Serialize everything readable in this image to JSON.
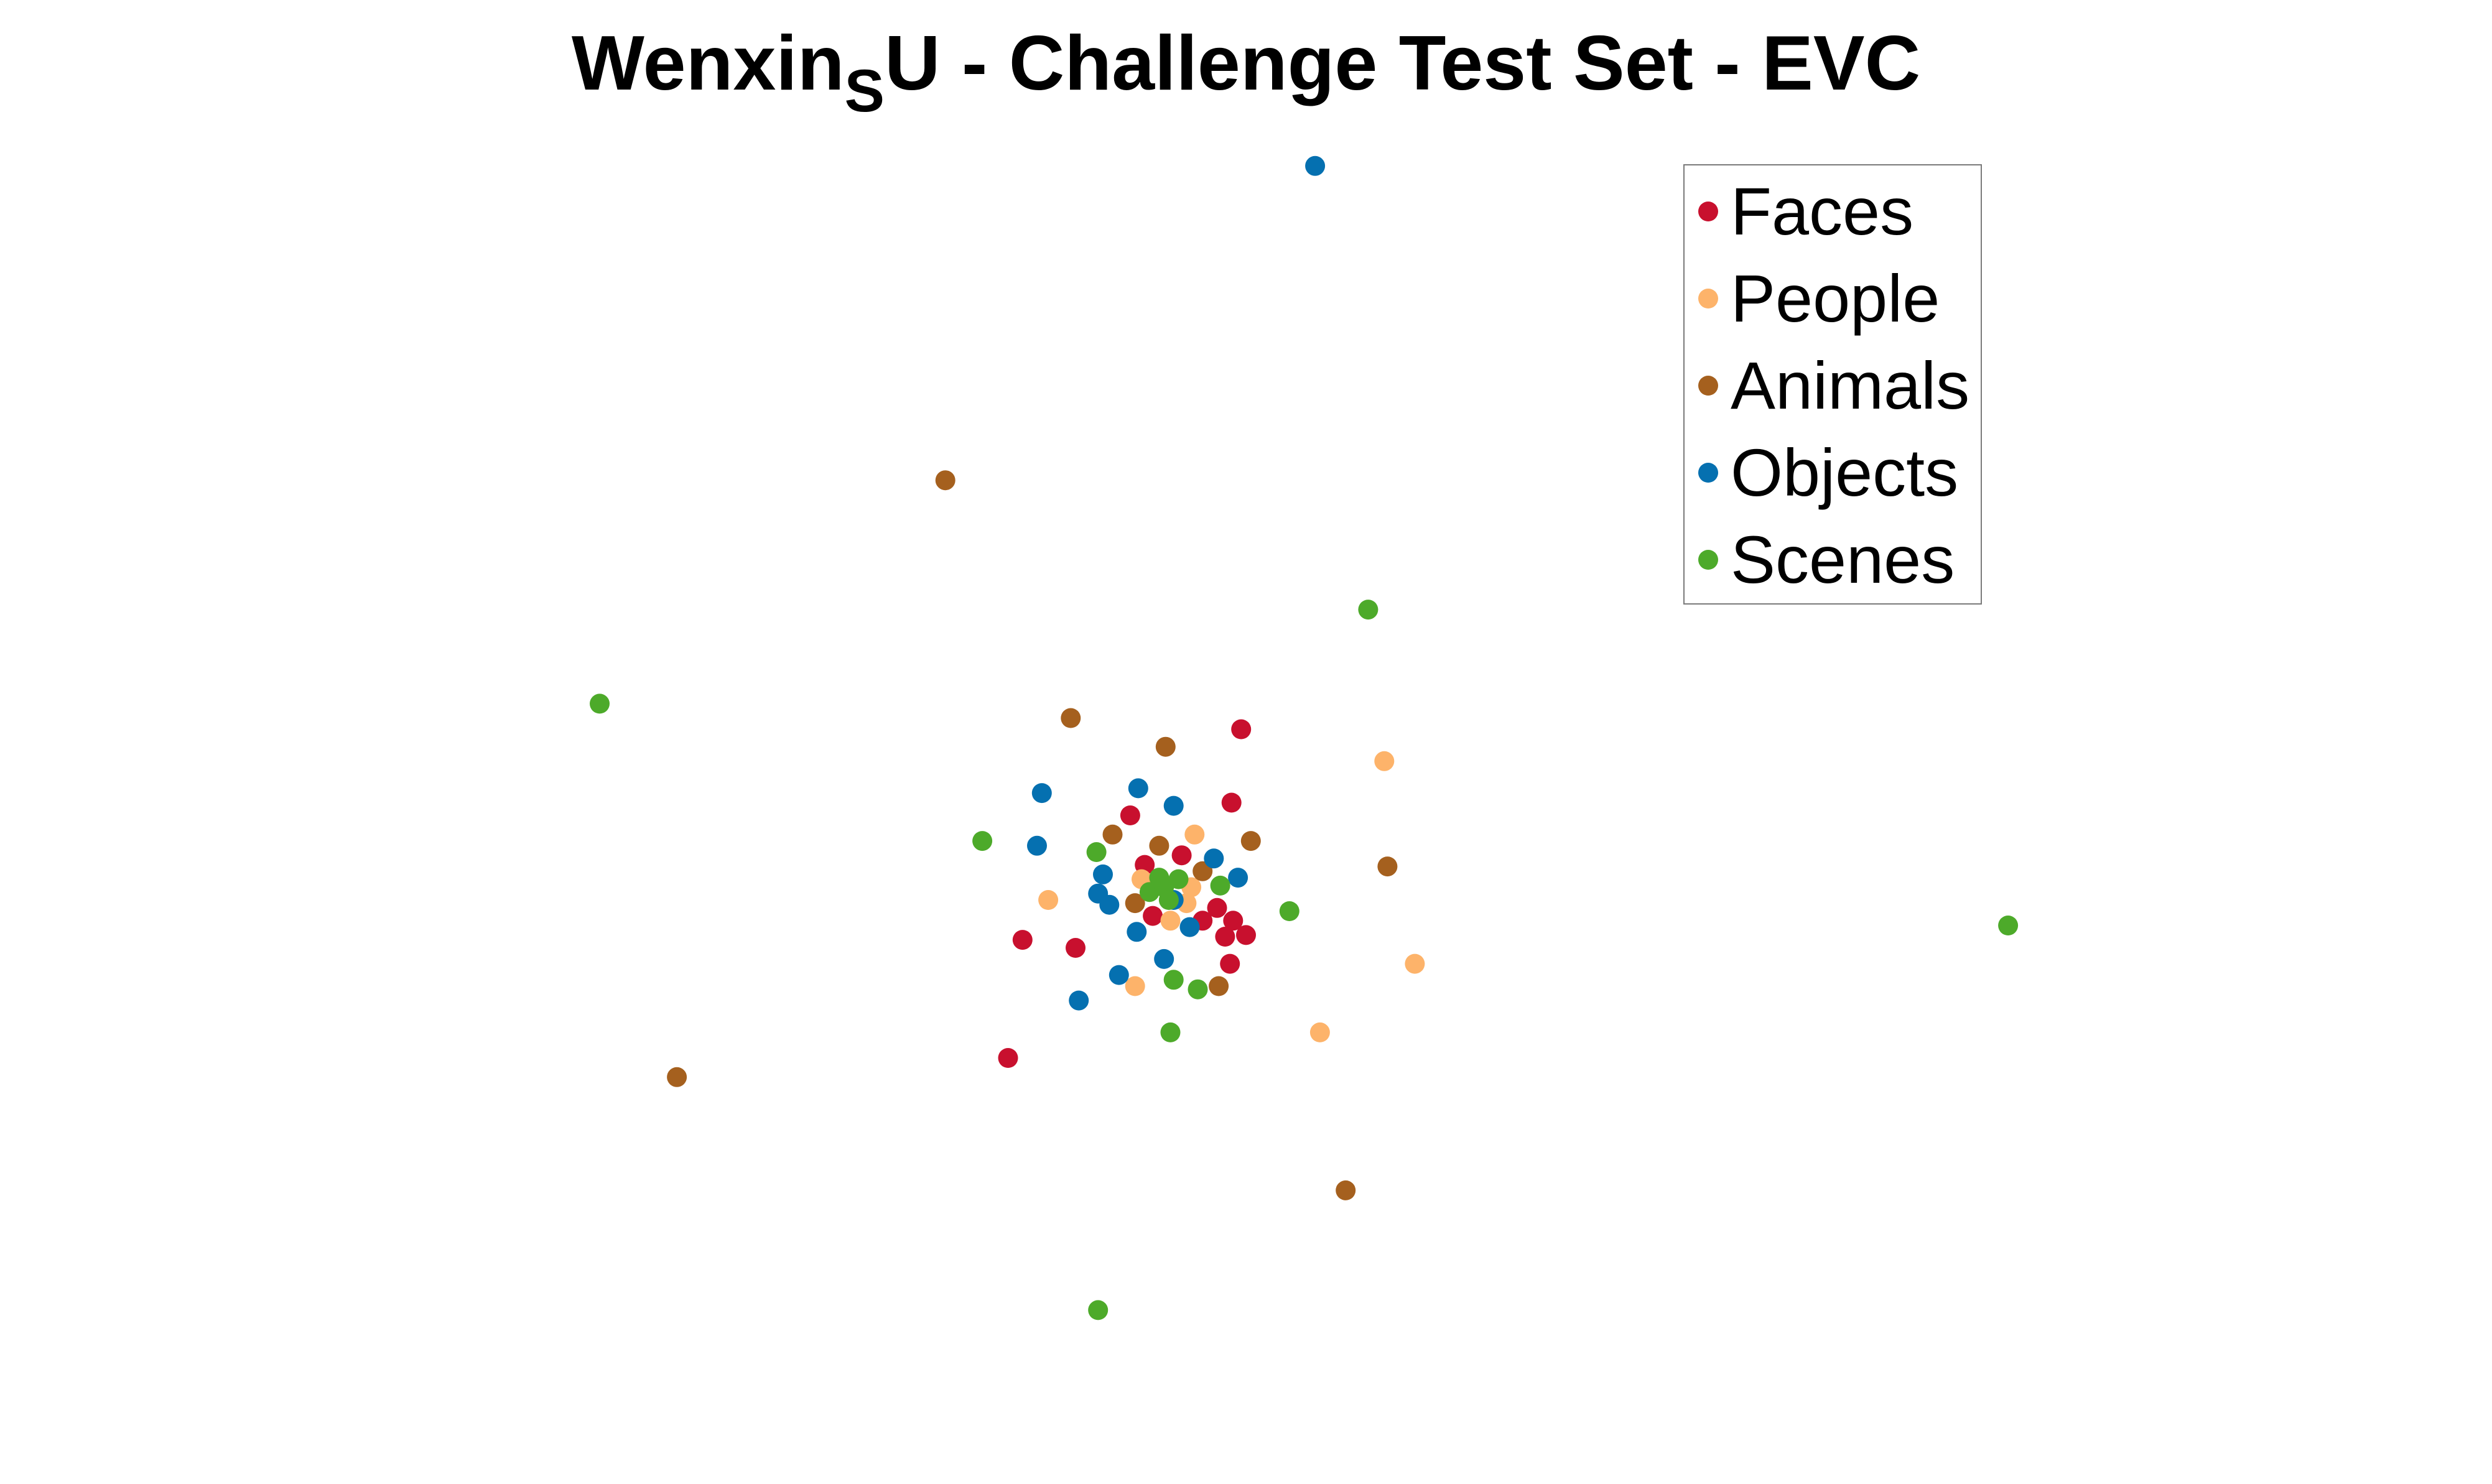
{
  "chart_data": {
    "type": "scatter",
    "title_main": "Wenxin",
    "title_sub": "S",
    "title_rest": "U - Challenge Test Set - EVC",
    "xlabel": "",
    "ylabel": "",
    "axes_visible": false,
    "grid": false,
    "xlim": [
      0,
      1550
    ],
    "ylim": [
      -930,
      0
    ],
    "legend_position": "top-right",
    "series": [
      {
        "name": "Faces",
        "color": "#C8102E",
        "points": [
          {
            "x": 772,
            "y": -457
          },
          {
            "x": 766,
            "y": -503
          },
          {
            "x": 703,
            "y": -511
          },
          {
            "x": 735,
            "y": -536
          },
          {
            "x": 712,
            "y": -542
          },
          {
            "x": 757,
            "y": -569
          },
          {
            "x": 717,
            "y": -574
          },
          {
            "x": 748,
            "y": -577
          },
          {
            "x": 767,
            "y": -577
          },
          {
            "x": 762,
            "y": -587
          },
          {
            "x": 775,
            "y": -586
          },
          {
            "x": 636,
            "y": -589
          },
          {
            "x": 669,
            "y": -594
          },
          {
            "x": 765,
            "y": -604
          },
          {
            "x": 627,
            "y": -663
          }
        ]
      },
      {
        "name": "People",
        "color": "#FDB36A",
        "points": [
          {
            "x": 861,
            "y": -477
          },
          {
            "x": 743,
            "y": -523
          },
          {
            "x": 710,
            "y": -551
          },
          {
            "x": 741,
            "y": -556
          },
          {
            "x": 738,
            "y": -566
          },
          {
            "x": 652,
            "y": -564
          },
          {
            "x": 728,
            "y": -577
          },
          {
            "x": 880,
            "y": -604
          },
          {
            "x": 706,
            "y": -618
          },
          {
            "x": 821,
            "y": -647
          }
        ]
      },
      {
        "name": "Animals",
        "color": "#A5601E",
        "points": [
          {
            "x": 588,
            "y": -301
          },
          {
            "x": 666,
            "y": -450
          },
          {
            "x": 725,
            "y": -468
          },
          {
            "x": 692,
            "y": -523
          },
          {
            "x": 721,
            "y": -530
          },
          {
            "x": 778,
            "y": -527
          },
          {
            "x": 748,
            "y": -546
          },
          {
            "x": 863,
            "y": -543
          },
          {
            "x": 706,
            "y": -566
          },
          {
            "x": 758,
            "y": -618
          },
          {
            "x": 421,
            "y": -675
          },
          {
            "x": 837,
            "y": -746
          }
        ]
      },
      {
        "name": "Objects",
        "color": "#0570B0",
        "points": [
          {
            "x": 818,
            "y": -104
          },
          {
            "x": 708,
            "y": -494
          },
          {
            "x": 648,
            "y": -497
          },
          {
            "x": 730,
            "y": -505
          },
          {
            "x": 645,
            "y": -530
          },
          {
            "x": 755,
            "y": -538
          },
          {
            "x": 686,
            "y": -548
          },
          {
            "x": 770,
            "y": -550
          },
          {
            "x": 683,
            "y": -560
          },
          {
            "x": 690,
            "y": -567
          },
          {
            "x": 730,
            "y": -564
          },
          {
            "x": 707,
            "y": -584
          },
          {
            "x": 740,
            "y": -581
          },
          {
            "x": 724,
            "y": -601
          },
          {
            "x": 696,
            "y": -611
          },
          {
            "x": 671,
            "y": -627
          }
        ]
      },
      {
        "name": "Scenes",
        "color": "#4DAA2A",
        "points": [
          {
            "x": 851,
            "y": -382
          },
          {
            "x": 373,
            "y": -441
          },
          {
            "x": 611,
            "y": -527
          },
          {
            "x": 682,
            "y": -534
          },
          {
            "x": 721,
            "y": -550
          },
          {
            "x": 733,
            "y": -551
          },
          {
            "x": 715,
            "y": -559
          },
          {
            "x": 724,
            "y": -556
          },
          {
            "x": 727,
            "y": -564
          },
          {
            "x": 759,
            "y": -555
          },
          {
            "x": 802,
            "y": -571
          },
          {
            "x": 1249,
            "y": -580
          },
          {
            "x": 730,
            "y": -614
          },
          {
            "x": 745,
            "y": -620
          },
          {
            "x": 728,
            "y": -647
          },
          {
            "x": 683,
            "y": -821
          }
        ]
      }
    ]
  }
}
